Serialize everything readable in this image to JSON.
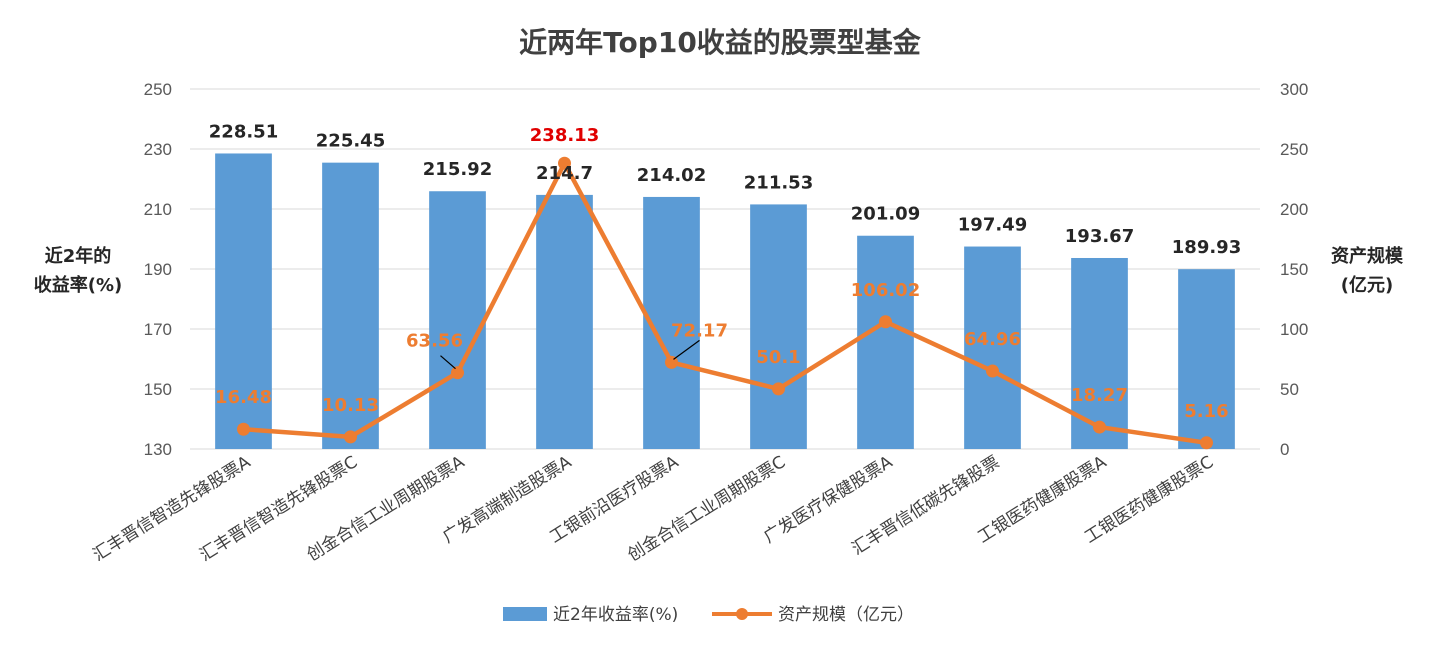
{
  "chart_data": {
    "type": "bar",
    "title": "近两年Top10收益的股票型基金",
    "ylabel_left": [
      "近2年的",
      "收益率(%)"
    ],
    "ylabel_right": [
      "资产规模",
      "(亿元)"
    ],
    "ylim_left": [
      130,
      250
    ],
    "yticks_left": [
      130,
      150,
      170,
      190,
      210,
      230,
      250
    ],
    "ylim_right": [
      0,
      300
    ],
    "yticks_right": [
      0,
      50,
      100,
      150,
      200,
      250,
      300
    ],
    "grid": true,
    "legend_position": "bottom",
    "categories": [
      "汇丰晋信智造先锋股票A",
      "汇丰晋信智造先锋股票C",
      "创金合信工业周期股票A",
      "广发高端制造股票A",
      "工银前沿医疗股票A",
      "创金合信工业周期股票C",
      "广发医疗保健股票A",
      "汇丰晋信低碳先锋股票",
      "工银医药健康股票A",
      "工银医药健康股票C"
    ],
    "series": [
      {
        "name": "近2年收益率(%)",
        "type": "bar",
        "axis": "left",
        "color": "#5B9BD5",
        "values": [
          228.51,
          225.45,
          215.92,
          214.7,
          214.02,
          211.53,
          201.09,
          197.49,
          193.67,
          189.93
        ],
        "labels": [
          "228.51",
          "225.45",
          "215.92",
          "214.7",
          "214.02",
          "211.53",
          "201.09",
          "197.49",
          "193.67",
          "189.93"
        ]
      },
      {
        "name": "资产规模（亿元）",
        "type": "line",
        "axis": "right",
        "color": "#ED7D31",
        "highlight_color": "#E00000",
        "highlight_index": 3,
        "values": [
          16.48,
          10.13,
          63.56,
          238.13,
          72.17,
          50.1,
          106.02,
          64.96,
          18.27,
          5.16
        ],
        "labels": [
          "16.48",
          "10.13",
          "63.56",
          "238.13",
          "72.17",
          "50.1",
          "106.02",
          "64.96",
          "18.27",
          "5.16"
        ]
      }
    ]
  }
}
